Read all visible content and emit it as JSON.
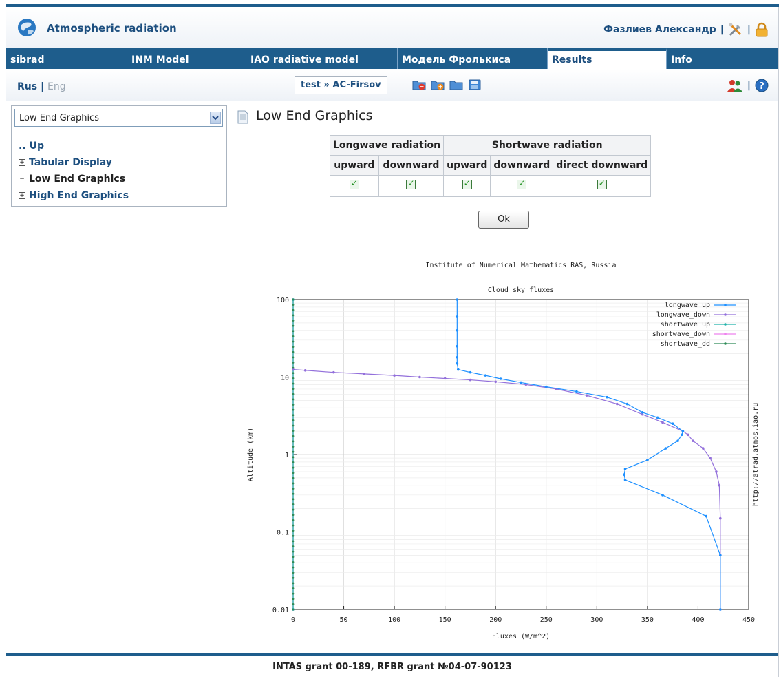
{
  "header": {
    "app_title": "Atmospheric radiation",
    "user_name": "Фазлиев Александр",
    "separator": "|"
  },
  "tabs": [
    {
      "label": "sibrad",
      "active": false
    },
    {
      "label": "INM Model",
      "active": false
    },
    {
      "label": "IAO radiative model",
      "active": false
    },
    {
      "label": "Модель Фролькиса",
      "active": false
    },
    {
      "label": "Results",
      "active": true
    },
    {
      "label": "Info",
      "active": false
    }
  ],
  "toolbar": {
    "lang_rus": "Rus",
    "lang_sep": "|",
    "lang_eng": "Eng",
    "breadcrumb": "test » AC-Firsov",
    "icons": [
      "folder-delete-icon",
      "folder-add-icon",
      "folder-icon",
      "save-icon"
    ],
    "right_sep": "|"
  },
  "sidebar": {
    "select_value": "Low End Graphics",
    "tree": [
      {
        "prefix": "..",
        "label": "Up"
      },
      {
        "prefix": "+",
        "label": "Tabular Display"
      },
      {
        "prefix": "−",
        "label": "Low End Graphics"
      },
      {
        "prefix": "+",
        "label": "High End Graphics"
      }
    ]
  },
  "content": {
    "title": "Low End Graphics",
    "table": {
      "group_headers": [
        "Longwave radiation",
        "Shortwave radiation"
      ],
      "columns": [
        "upward",
        "downward",
        "upward",
        "downward",
        "direct downward"
      ],
      "checked": [
        true,
        true,
        true,
        true,
        true
      ]
    },
    "ok_label": "Ok"
  },
  "chart_data": {
    "type": "line",
    "title": "Institute of Numerical Mathematics RAS, Russia",
    "subtitle": "Cloud sky fluxes",
    "xlabel": "Fluxes (W/m^2)",
    "ylabel": "Altitude (km)",
    "right_label": "http://atrad.atmos.iao.ru",
    "xlim": [
      0,
      450
    ],
    "ylim": [
      0.01,
      100
    ],
    "yscale": "log",
    "x_ticks": [
      "0",
      "50",
      "100",
      "150",
      "200",
      "250",
      "300",
      "350",
      "400",
      "450"
    ],
    "y_ticks": [
      "100",
      "10",
      "1",
      "0.1",
      "0.01"
    ],
    "grid": true,
    "legend_position": "top-right",
    "series": [
      {
        "name": "longwave_up",
        "color": "#1e90ff",
        "points": [
          [
            162,
            100
          ],
          [
            162,
            60
          ],
          [
            162,
            40
          ],
          [
            162,
            25
          ],
          [
            162,
            18
          ],
          [
            162,
            15
          ],
          [
            163,
            12.5
          ],
          [
            175,
            11.5
          ],
          [
            190,
            10.5
          ],
          [
            205,
            9.5
          ],
          [
            225,
            8.5
          ],
          [
            250,
            7.5
          ],
          [
            280,
            6.5
          ],
          [
            310,
            5.5
          ],
          [
            330,
            4.5
          ],
          [
            345,
            3.5
          ],
          [
            360,
            3
          ],
          [
            375,
            2.5
          ],
          [
            385,
            2
          ],
          [
            384,
            1.8
          ],
          [
            380,
            1.5
          ],
          [
            368,
            1.2
          ],
          [
            350,
            0.85
          ],
          [
            328,
            0.65
          ],
          [
            327,
            0.55
          ],
          [
            328,
            0.47
          ],
          [
            365,
            0.3
          ],
          [
            408,
            0.16
          ],
          [
            422,
            0.05
          ],
          [
            422,
            0.01
          ]
        ]
      },
      {
        "name": "longwave_down",
        "color": "#9370db",
        "points": [
          [
            0,
            12.5
          ],
          [
            12,
            12.2
          ],
          [
            40,
            11.5
          ],
          [
            70,
            11
          ],
          [
            100,
            10.5
          ],
          [
            125,
            10
          ],
          [
            150,
            9.6
          ],
          [
            175,
            9.2
          ],
          [
            200,
            8.7
          ],
          [
            230,
            8
          ],
          [
            260,
            7
          ],
          [
            290,
            5.8
          ],
          [
            320,
            4.5
          ],
          [
            345,
            3.3
          ],
          [
            365,
            2.6
          ],
          [
            385,
            2
          ],
          [
            390,
            1.8
          ],
          [
            395,
            1.5
          ],
          [
            405,
            1.2
          ],
          [
            412,
            0.9
          ],
          [
            418,
            0.6
          ],
          [
            421,
            0.4
          ],
          [
            422,
            0.15
          ],
          [
            422,
            0.05
          ],
          [
            422,
            0.01
          ]
        ]
      },
      {
        "name": "shortwave_up",
        "color": "#20b2aa",
        "points": [
          [
            0,
            100
          ],
          [
            0,
            0.01
          ]
        ]
      },
      {
        "name": "shortwave_down",
        "color": "#ee82ee",
        "points": [
          [
            0,
            100
          ],
          [
            0,
            0.01
          ]
        ]
      },
      {
        "name": "shortwave_dd",
        "color": "#2e8b57",
        "points": [
          [
            0,
            100
          ],
          [
            0,
            0.01
          ]
        ]
      }
    ]
  },
  "footer": {
    "text": "INTAS grant 00-189, RFBR grant №04-07-90123"
  }
}
